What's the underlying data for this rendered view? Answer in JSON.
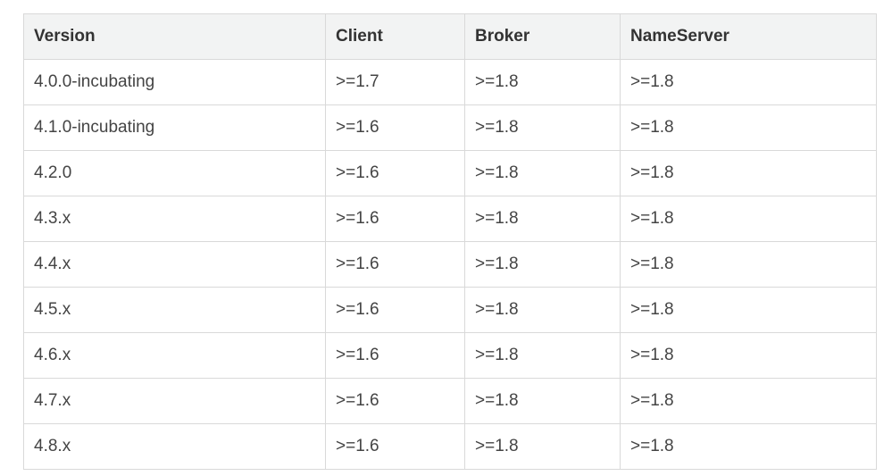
{
  "table": {
    "headers": [
      "Version",
      "Client",
      "Broker",
      "NameServer"
    ],
    "rows": [
      [
        "4.0.0-incubating",
        ">=1.7",
        ">=1.8",
        ">=1.8"
      ],
      [
        "4.1.0-incubating",
        ">=1.6",
        ">=1.8",
        ">=1.8"
      ],
      [
        "4.2.0",
        ">=1.6",
        ">=1.8",
        ">=1.8"
      ],
      [
        "4.3.x",
        ">=1.6",
        ">=1.8",
        ">=1.8"
      ],
      [
        "4.4.x",
        ">=1.6",
        ">=1.8",
        ">=1.8"
      ],
      [
        "4.5.x",
        ">=1.6",
        ">=1.8",
        ">=1.8"
      ],
      [
        "4.6.x",
        ">=1.6",
        ">=1.8",
        ">=1.8"
      ],
      [
        "4.7.x",
        ">=1.6",
        ">=1.8",
        ">=1.8"
      ],
      [
        "4.8.x",
        ">=1.6",
        ">=1.8",
        ">=1.8"
      ]
    ]
  }
}
